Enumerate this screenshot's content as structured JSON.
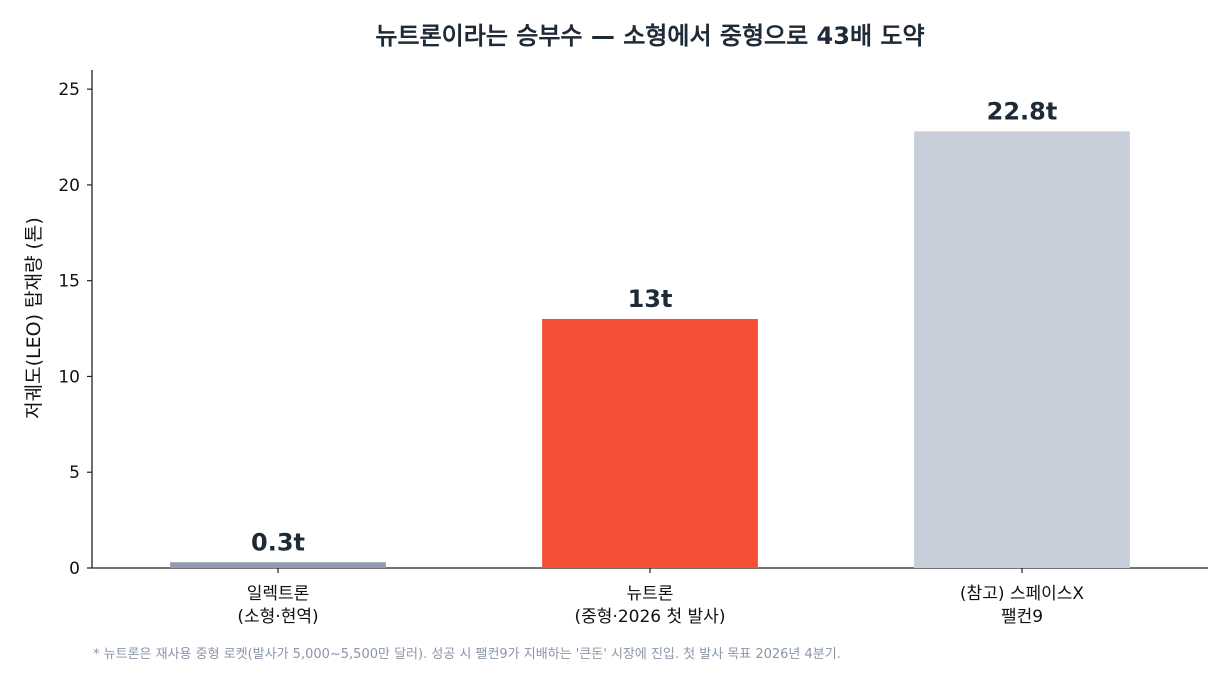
{
  "chart_data": {
    "type": "bar",
    "title": "뉴트론이라는 승부수 — 소형에서 중형으로 43배 도약",
    "xlabel": "",
    "ylabel": "저궤도(LEO) 탑재량 (톤)",
    "ylim": [
      0,
      26
    ],
    "yticks": [
      0,
      5,
      10,
      15,
      20,
      25
    ],
    "grid": false,
    "categories": [
      [
        "일렉트론",
        "(소형·현역)"
      ],
      [
        "뉴트론",
        "(중형·2026 첫 발사)"
      ],
      [
        "(참고) 스페이스X",
        "팰컨9"
      ]
    ],
    "values": [
      0.3,
      13,
      22.8
    ],
    "data_labels": [
      "0.3t",
      "13t",
      "22.8t"
    ],
    "colors": [
      "#8f9bb0",
      "#f64f35",
      "#c8cfdb"
    ]
  },
  "footnote": "* 뉴트론은 재사용 중형 로켓(발사가 5,000~5,500만 달러). 성공 시 팰컨9가 지배하는 '큰돈' 시장에 진입. 첫 발사 목표 2026년 4분기."
}
